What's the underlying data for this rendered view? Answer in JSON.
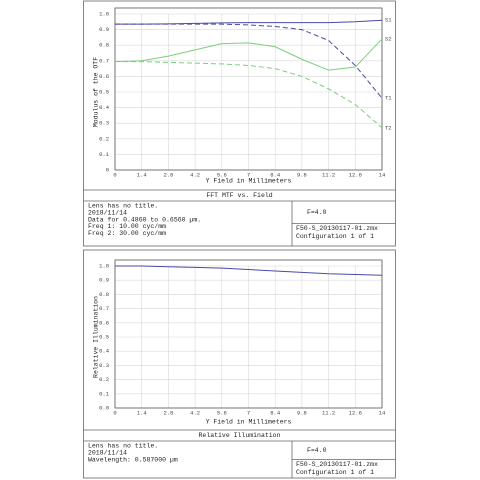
{
  "chart_data": [
    {
      "type": "line",
      "title": "FFT MTF vs. Field",
      "x_label": "Y Field in Millimeters",
      "y_label": "Modulus of the OTF",
      "x": [
        0,
        1.4,
        2.8,
        4.2,
        5.6,
        7,
        8.4,
        9.8,
        11.2,
        12.6,
        14
      ],
      "series": [
        {
          "name": "S1",
          "color": "#4a4aa8",
          "dash": false,
          "values": [
            0.935,
            0.935,
            0.937,
            0.94,
            0.943,
            0.945,
            0.945,
            0.945,
            0.945,
            0.95,
            0.96
          ]
        },
        {
          "name": "T1",
          "color": "#4a4aa8",
          "dash": true,
          "values": [
            0.935,
            0.935,
            0.935,
            0.935,
            0.935,
            0.93,
            0.92,
            0.9,
            0.83,
            0.67,
            0.46
          ]
        },
        {
          "name": "S2",
          "color": "#7ad07a",
          "dash": false,
          "values": [
            0.695,
            0.7,
            0.73,
            0.77,
            0.81,
            0.815,
            0.79,
            0.71,
            0.64,
            0.66,
            0.84
          ]
        },
        {
          "name": "T2",
          "color": "#7ad07a",
          "dash": true,
          "values": [
            0.695,
            0.695,
            0.69,
            0.685,
            0.68,
            0.67,
            0.65,
            0.6,
            0.52,
            0.42,
            0.27
          ]
        }
      ],
      "xlim": [
        0,
        14
      ],
      "xticks": [
        0,
        1.4,
        2.8,
        4.2,
        5.6,
        7,
        8.4,
        9.8,
        11.2,
        12.6,
        14
      ],
      "ylim": [
        0,
        1
      ],
      "yticks": [
        0,
        0.1,
        0.2,
        0.3,
        0.4,
        0.5,
        0.6,
        0.7,
        0.8,
        0.9,
        {
          "value": 1,
          "label": "1.0"
        }
      ],
      "grid": true,
      "info": [
        {
          "text": "Lens has no title.",
          "color": "#222222"
        },
        {
          "text": "2018/11/14",
          "color": "#222222"
        },
        {
          "text": "Data for 0.4860 to 0.6560 µm.",
          "color": "#222222"
        },
        {
          "text": "Freq 1:  10.00 cyc/mm",
          "color": "#4a4aa8"
        },
        {
          "text": "Freq 2:  30.00 cyc/mm",
          "color": "#5cc45c"
        }
      ],
      "f_number": "F=4.0",
      "file": "F50-S_20130117-01.zmx",
      "configuration": "Configuration 1 of 1"
    },
    {
      "type": "line",
      "title": "Relative Illumination",
      "x_label": "Y Field in Millimeters",
      "y_label": "Relative Illumination",
      "x": [
        0,
        1.4,
        2.8,
        4.2,
        5.6,
        7,
        8.4,
        9.8,
        11.2,
        12.6,
        14
      ],
      "series": [
        {
          "color": "#4a4aa8",
          "dash": false,
          "values": [
            1,
            1,
            0.995,
            0.99,
            0.985,
            0.975,
            0.965,
            0.955,
            0.945,
            0.94,
            0.935
          ]
        }
      ],
      "xlim": [
        0,
        14
      ],
      "xticks": [
        0,
        1.4,
        2.8,
        4.2,
        5.6,
        7,
        8.4,
        9.8,
        11.2,
        12.6,
        14
      ],
      "ylim": [
        0,
        1
      ],
      "yticks": [
        {
          "value": 0,
          "label": "0.0"
        },
        0.1,
        0.2,
        0.3,
        0.4,
        0.5,
        0.6,
        0.7,
        0.8,
        0.9,
        {
          "value": 1,
          "label": "1.0"
        }
      ],
      "grid": true,
      "info": [
        {
          "text": "Lens has no title.",
          "color": "#222222"
        },
        {
          "text": "2018/11/14",
          "color": "#222222"
        },
        {
          "text": "Wavelength: 0.587000 µm",
          "color": "#222222"
        }
      ],
      "f_number": "F=4.0",
      "file": "F50-S_20130117-01.zmx",
      "configuration": "Configuration 1 of 1"
    }
  ]
}
